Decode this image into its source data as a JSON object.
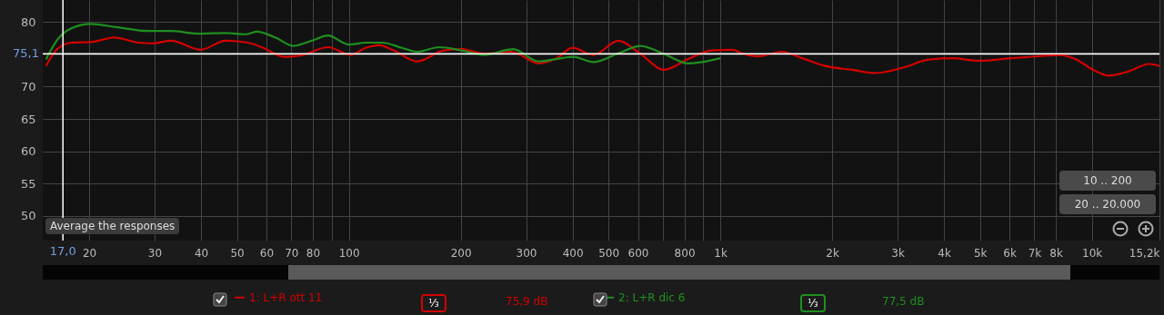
{
  "chart_data": {
    "type": "line",
    "legend": "bottom",
    "grid": true,
    "log": "x",
    "marker": "none",
    "line_style": "solid",
    "xlim": [
      15,
      15200
    ],
    "ylim": [
      46.2,
      83.4
    ],
    "xticks": [
      20,
      30,
      40,
      50,
      60,
      70,
      80,
      {
        "value": 90,
        "label": null
      },
      100,
      200,
      300,
      400,
      500,
      600,
      {
        "value": 700,
        "label": null
      },
      800,
      {
        "value": 900,
        "label": null
      },
      {
        "value": 1000,
        "label": "1k"
      },
      {
        "value": 2000,
        "label": "2k"
      },
      {
        "value": 3000,
        "label": "3k"
      },
      {
        "value": 4000,
        "label": "4k"
      },
      {
        "value": 5000,
        "label": "5k"
      },
      {
        "value": 6000,
        "label": "6k"
      },
      {
        "value": 7000,
        "label": "7k"
      },
      {
        "value": 8000,
        "label": "8k"
      },
      {
        "value": 10000,
        "label": "10k"
      },
      {
        "value": 15200,
        "label": "15,2k"
      }
    ],
    "yticks": [
      50,
      55,
      60,
      65,
      70,
      {
        "value": 75,
        "label": null
      },
      80
    ],
    "ref_lines": [
      {
        "axis": "y",
        "value": 75.1,
        "label": "75,1",
        "color": "#ffffff"
      },
      {
        "axis": "x",
        "value": 17,
        "label": "17,0",
        "color": "#ffffff"
      }
    ],
    "annotations": [
      "Average the responses",
      "10 .. 200",
      "20 .. 20.000",
      "⅓",
      "75,9 dB",
      "⅓",
      "77,5 dB"
    ],
    "series": [
      {
        "name": "1: L+R ott 11",
        "color": "#d40000",
        "x": [
          15.3,
          16.4,
          17.9,
          20.2,
          23.4,
          27.2,
          29.6,
          33.2,
          39.9,
          46.5,
          53.5,
          58.3,
          67.1,
          75,
          87.9,
          101,
          111,
          121,
          132,
          153,
          180,
          201,
          231,
          274,
          324,
          363,
          400,
          455,
          532,
          603,
          706,
          821,
          945,
          1076,
          1151,
          1267,
          1458,
          1660,
          1911,
          2262,
          2604,
          3083,
          3650,
          4203,
          4976,
          6059,
          7173,
          8259,
          8986,
          10226,
          11066,
          12598,
          14257,
          15200
        ],
        "values": [
          73.2,
          75.8,
          76.8,
          76.9,
          77.6,
          76.8,
          76.7,
          77.1,
          75.7,
          77.1,
          76.8,
          76.1,
          74.6,
          74.9,
          76.1,
          74.9,
          76.0,
          76.4,
          75.6,
          73.9,
          75.6,
          75.8,
          75.1,
          75.4,
          73.6,
          74.4,
          76.0,
          74.9,
          77.1,
          75.3,
          72.6,
          74.3,
          75.6,
          75.7,
          75.1,
          74.7,
          75.4,
          74.4,
          73.2,
          72.6,
          72.1,
          72.9,
          74.2,
          74.4,
          74.0,
          74.4,
          74.7,
          74.9,
          74.3,
          72.4,
          71.7,
          72.4,
          73.5,
          73.2
        ]
      },
      {
        "name": "2: L+R dic 6",
        "color": "#1f8f1f",
        "x": [
          15.3,
          16.4,
          17.9,
          20.2,
          23.7,
          28.8,
          33.2,
          39.3,
          46.5,
          52.9,
          56.6,
          63.4,
          70.9,
          79.4,
          87.9,
          100,
          111,
          123,
          139,
          153,
          175,
          201,
          231,
          277,
          324,
          402,
          455,
          538,
          609,
          714,
          821,
          1000
        ],
        "values": [
          74.2,
          77.2,
          79.0,
          79.7,
          79.2,
          78.6,
          78.6,
          78.2,
          78.3,
          78.1,
          78.5,
          77.6,
          76.3,
          77.1,
          77.9,
          76.5,
          76.8,
          76.8,
          76.0,
          75.4,
          76.1,
          75.6,
          74.9,
          75.8,
          73.9,
          74.6,
          73.8,
          75.3,
          76.3,
          74.9,
          73.6,
          74.4
        ]
      }
    ]
  }
}
